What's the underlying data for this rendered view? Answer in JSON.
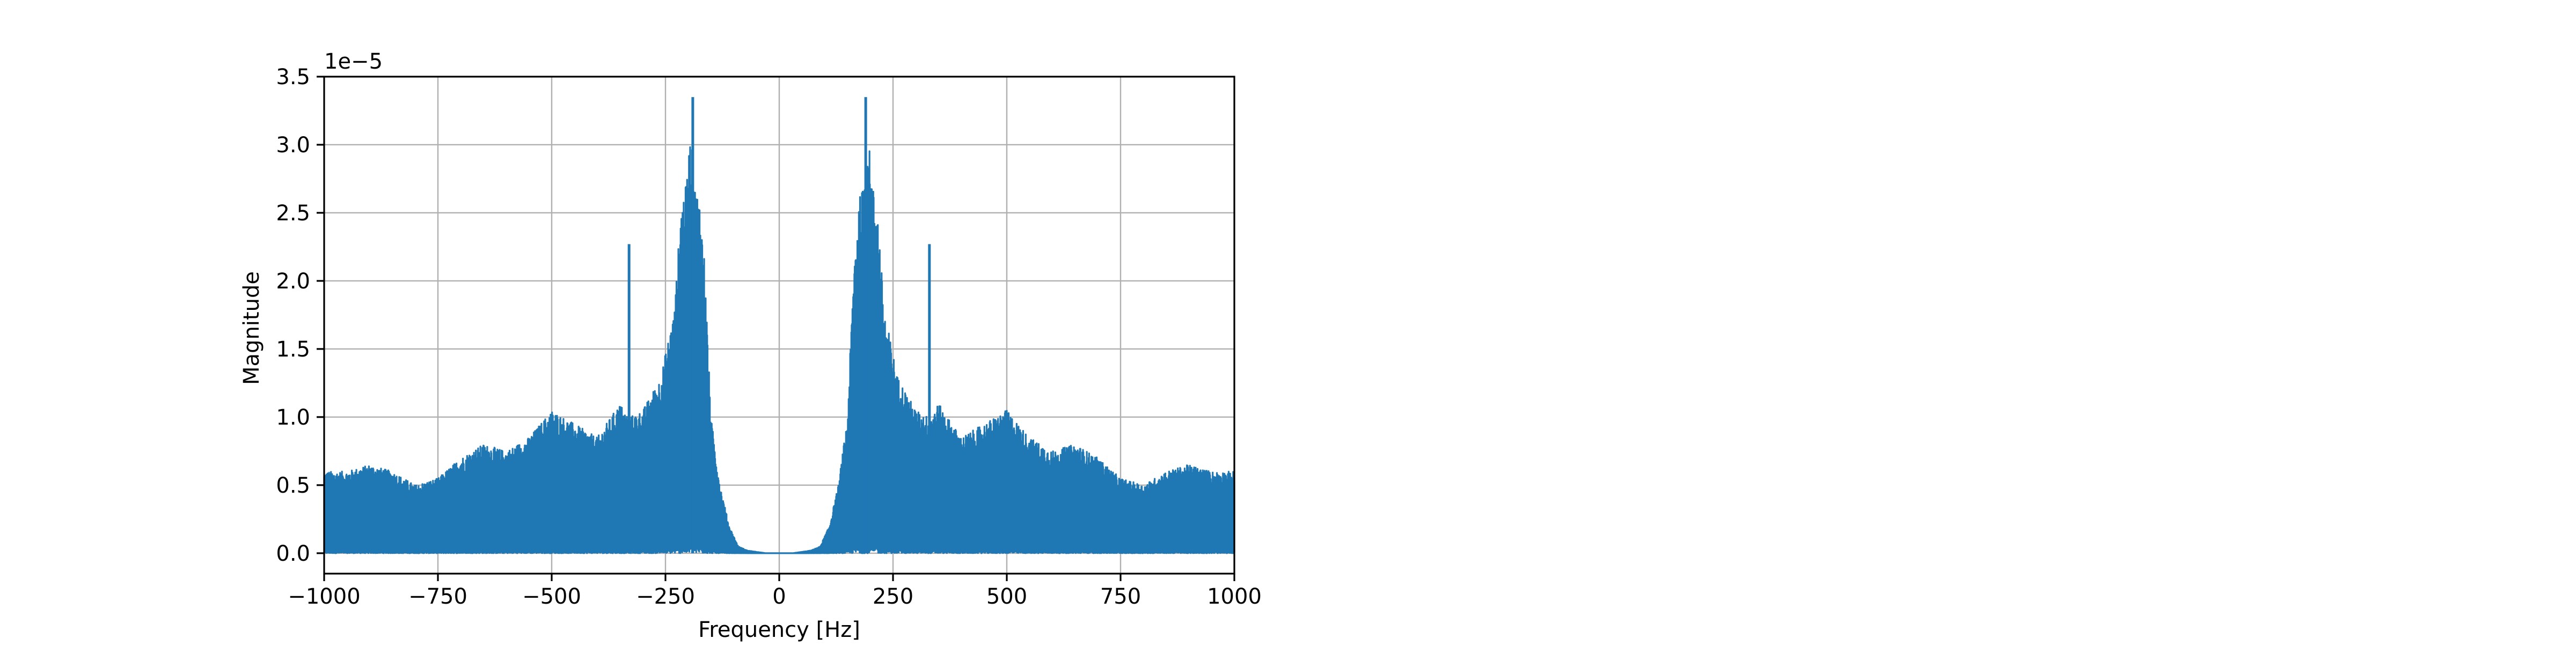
{
  "chart_data": {
    "type": "line",
    "title": "",
    "xlabel": "Frequency [Hz]",
    "ylabel": "Magnitude",
    "y_multiplier": "1e−5",
    "xlim": [
      -1000,
      1000
    ],
    "ylim": [
      -0.15,
      3.5
    ],
    "x_ticks": [
      -1000,
      -750,
      -500,
      -250,
      0,
      250,
      500,
      750,
      1000
    ],
    "x_tick_labels": [
      "−1000",
      "−750",
      "−500",
      "−250",
      "0",
      "250",
      "500",
      "750",
      "1000"
    ],
    "y_ticks": [
      0.0,
      0.5,
      1.0,
      1.5,
      2.0,
      2.5,
      3.0,
      3.5
    ],
    "y_tick_labels": [
      "0.0",
      "0.5",
      "1.0",
      "1.5",
      "2.0",
      "2.5",
      "3.0",
      "3.5"
    ],
    "grid": true,
    "line_color": "#1f77b4",
    "spectrum_envelope": {
      "x": [
        -1000,
        -950,
        -900,
        -850,
        -800,
        -750,
        -700,
        -650,
        -600,
        -550,
        -500,
        -450,
        -400,
        -350,
        -330,
        -300,
        -260,
        -230,
        -215,
        -205,
        -195,
        -185,
        -175,
        -165,
        -150,
        -130,
        -110,
        -90,
        -70,
        -50,
        -30,
        0,
        30,
        50,
        70,
        90,
        110,
        130,
        150,
        165,
        175,
        185,
        195,
        205,
        215,
        230,
        260,
        300,
        330,
        350,
        400,
        450,
        500,
        550,
        600,
        650,
        700,
        750,
        800,
        850,
        900,
        950,
        1000
      ],
      "y": [
        0.6,
        0.6,
        0.65,
        0.6,
        0.5,
        0.55,
        0.7,
        0.8,
        0.75,
        0.85,
        1.05,
        0.95,
        0.85,
        1.1,
        1.0,
        1.05,
        1.3,
        1.8,
        2.6,
        2.7,
        3.1,
        2.7,
        2.6,
        2.2,
        1.0,
        0.5,
        0.2,
        0.05,
        0.02,
        0.01,
        0.0,
        0.0,
        0.0,
        0.01,
        0.02,
        0.05,
        0.2,
        0.5,
        1.0,
        2.2,
        2.6,
        2.7,
        3.1,
        2.7,
        2.6,
        1.8,
        1.3,
        1.05,
        1.0,
        1.1,
        0.85,
        0.95,
        1.05,
        0.85,
        0.75,
        0.8,
        0.7,
        0.55,
        0.5,
        0.6,
        0.65,
        0.6,
        0.6
      ]
    },
    "spectral_spikes": [
      {
        "x": -330,
        "y": 2.27
      },
      {
        "x": -190,
        "y": 3.35
      },
      {
        "x": 190,
        "y": 3.35
      },
      {
        "x": 330,
        "y": 2.27
      }
    ]
  }
}
